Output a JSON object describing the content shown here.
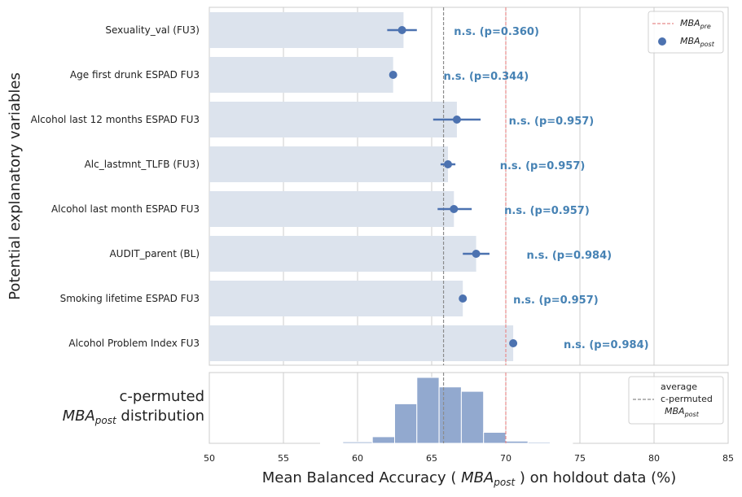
{
  "chart_data": [
    {
      "type": "bar",
      "ylabel": "Potential explanatory variables",
      "xlim": [
        50,
        85
      ],
      "xticks": [
        50,
        55,
        60,
        65,
        70,
        75,
        80,
        85
      ],
      "categories": [
        "Sexuality_val (FU3)",
        "Age first drunk ESPAD FU3",
        "Alcohol last 12 months ESPAD FU3",
        "Alc_lastmnt_TLFB (FU3)",
        "Alcohol last month ESPAD FU3",
        "AUDIT_parent (BL)",
        "Smoking lifetime ESPAD FU3",
        "Alcohol Problem Index FU3"
      ],
      "bar_values": [
        63.1,
        62.4,
        66.7,
        66.1,
        66.5,
        68.0,
        67.1,
        70.5
      ],
      "points": [
        {
          "mean": 63.0,
          "ci": [
            62.0,
            64.0
          ]
        },
        {
          "mean": 62.4,
          "ci": [
            62.4,
            62.4
          ]
        },
        {
          "mean": 66.7,
          "ci": [
            65.1,
            68.3
          ]
        },
        {
          "mean": 66.1,
          "ci": [
            65.6,
            66.6
          ]
        },
        {
          "mean": 66.5,
          "ci": [
            65.4,
            67.7
          ]
        },
        {
          "mean": 68.0,
          "ci": [
            67.1,
            68.9
          ]
        },
        {
          "mean": 67.1,
          "ci": [
            67.1,
            67.1
          ]
        },
        {
          "mean": 70.5,
          "ci": [
            70.5,
            70.5
          ]
        }
      ],
      "annotations": [
        {
          "text": "n.s. (p=0.360)",
          "x": 66.5
        },
        {
          "text": "n.s. (p=0.344)",
          "x": 65.8
        },
        {
          "text": "n.s. (p=0.957)",
          "x": 70.2
        },
        {
          "text": "n.s. (p=0.957)",
          "x": 69.6
        },
        {
          "text": "n.s. (p=0.957)",
          "x": 69.9
        },
        {
          "text": "n.s. (p=0.984)",
          "x": 71.4
        },
        {
          "text": "n.s. (p=0.957)",
          "x": 70.5
        },
        {
          "text": "n.s. (p=0.984)",
          "x": 73.9
        }
      ],
      "mba_pre": 70.0,
      "avg_permuted": 65.8,
      "legend": {
        "pre": "MBA",
        "pre_sub": "pre",
        "post": "MBA",
        "post_sub": "post"
      }
    },
    {
      "type": "histogram",
      "label_line1": "c-permuted",
      "label_line2_main": "MBA",
      "label_line2_sub": "post",
      "label_line2_rest": " distribution",
      "bins": [
        {
          "x0": 57.5,
          "x1": 59.0,
          "v": 0.3
        },
        {
          "x0": 59.0,
          "x1": 61.0,
          "v": 1.0
        },
        {
          "x0": 61.0,
          "x1": 62.5,
          "v": 4.5
        },
        {
          "x0": 62.5,
          "x1": 64.0,
          "v": 27.0
        },
        {
          "x0": 64.0,
          "x1": 65.5,
          "v": 45.0
        },
        {
          "x0": 65.5,
          "x1": 67.0,
          "v": 38.5
        },
        {
          "x0": 67.0,
          "x1": 68.5,
          "v": 35.5
        },
        {
          "x0": 68.5,
          "x1": 70.0,
          "v": 7.5
        },
        {
          "x0": 70.0,
          "x1": 71.5,
          "v": 1.5
        },
        {
          "x0": 71.5,
          "x1": 73.0,
          "v": 0.8
        },
        {
          "x0": 73.0,
          "x1": 74.5,
          "v": 0.2
        }
      ],
      "vmax": 45.0,
      "legend": {
        "line1": "average",
        "line2": "c-permuted",
        "line3_main": "MBA",
        "line3_sub": "post"
      },
      "xlabel_pre": "Mean Balanced Accuracy ( ",
      "xlabel_main": "MBA",
      "xlabel_sub": "post",
      "xlabel_post": " ) on holdout data (%)"
    }
  ],
  "colors": {
    "bar": "#dce3ed",
    "point": "#4c72b0",
    "annotation": "#4682b4",
    "pre_line": "#e88b8b",
    "perm_line": "#8c8c8c",
    "hist": "#92a9cf",
    "grid": "#cccccc"
  }
}
